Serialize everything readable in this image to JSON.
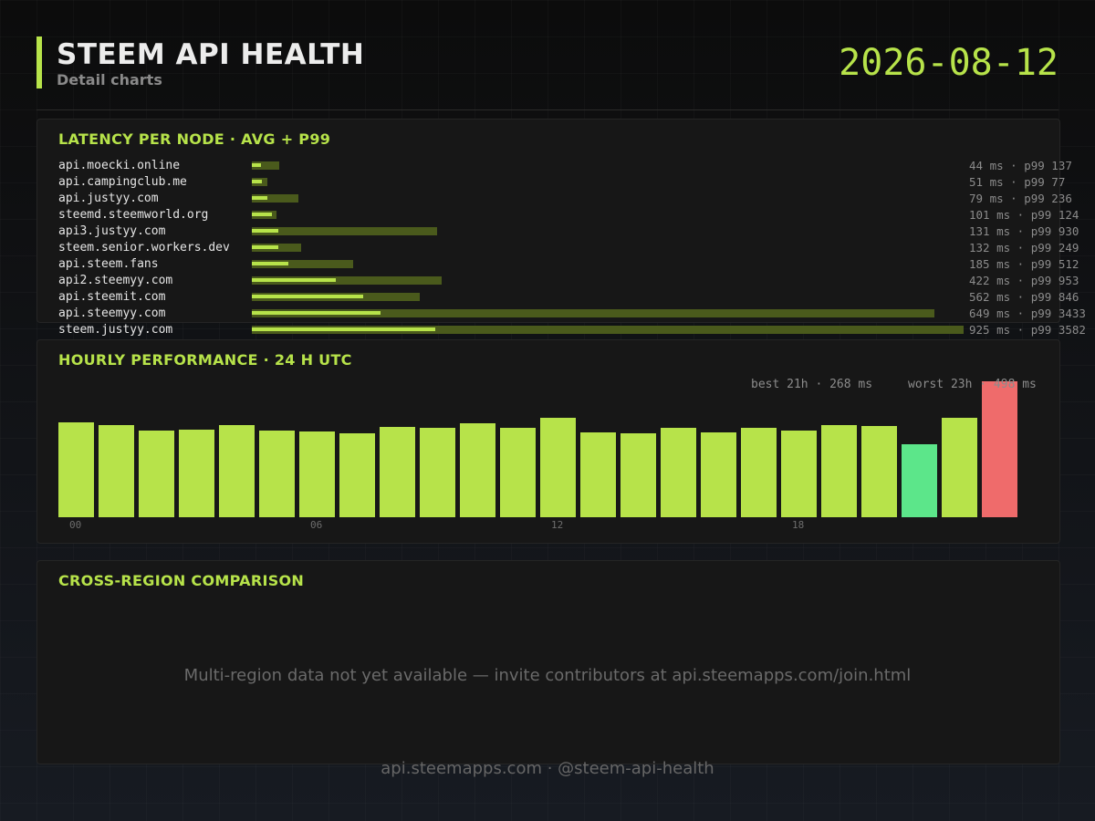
{
  "header": {
    "title": "STEEM API HEALTH",
    "subtitle": "Detail charts",
    "date": "2026-08-12"
  },
  "colors": {
    "accent": "#b7e34a",
    "p99_bar": "#4a5a1c",
    "best": "#5ce68a",
    "worst": "#ef6b6b"
  },
  "latency_panel": {
    "title": "LATENCY PER NODE  ·  AVG + P99"
  },
  "hourly_panel": {
    "title": "HOURLY PERFORMANCE  ·  24 H UTC",
    "best_label": "best 21h · 268 ms",
    "worst_label": "worst 23h · 498 ms"
  },
  "region_panel": {
    "title": "CROSS-REGION COMPARISON",
    "message": "Multi-region data not yet available — invite contributors at api.steemapps.com/join.html"
  },
  "footer": {
    "text": "api.steemapps.com  ·  @steem-api-health"
  },
  "chart_data": [
    {
      "type": "bar",
      "orientation": "horizontal",
      "title": "LATENCY PER NODE  ·  AVG + P99",
      "categories": [
        "api.moecki.online",
        "api.campingclub.me",
        "api.justyy.com",
        "steemd.steemworld.org",
        "api3.justyy.com",
        "steem.senior.workers.dev",
        "api.steem.fans",
        "api2.steemyy.com",
        "api.steemit.com",
        "api.steemyy.com",
        "steem.justyy.com"
      ],
      "series": [
        {
          "name": "avg",
          "values": [
            44,
            51,
            79,
            101,
            131,
            132,
            185,
            422,
            562,
            649,
            925
          ]
        },
        {
          "name": "p99",
          "values": [
            137,
            77,
            236,
            124,
            930,
            249,
            512,
            953,
            846,
            3433,
            3582
          ]
        }
      ],
      "labels": [
        "44 ms  · p99 137",
        "51 ms  · p99 77",
        "79 ms  · p99 236",
        "101 ms  · p99 124",
        "131 ms  · p99 930",
        "132 ms  · p99 249",
        "185 ms  · p99 512",
        "422 ms  · p99 953",
        "562 ms  · p99 846",
        "649 ms  · p99 3433",
        "925 ms  · p99 3582"
      ],
      "xlim": [
        0,
        3582
      ]
    },
    {
      "type": "bar",
      "title": "HOURLY PERFORMANCE  ·  24 H UTC",
      "categories": [
        "00",
        "01",
        "02",
        "03",
        "04",
        "05",
        "06",
        "07",
        "08",
        "09",
        "10",
        "11",
        "12",
        "13",
        "14",
        "15",
        "16",
        "17",
        "18",
        "19",
        "20",
        "21",
        "22",
        "23"
      ],
      "tick_labels": [
        "00",
        "06",
        "12",
        "18"
      ],
      "values": [
        348,
        338,
        316,
        322,
        336,
        318,
        315,
        309,
        332,
        326,
        345,
        326,
        365,
        310,
        309,
        326,
        312,
        326,
        319,
        339,
        335,
        268,
        365,
        498
      ],
      "best_hour": 21,
      "worst_hour": 23,
      "ylim": [
        0,
        498
      ]
    }
  ]
}
